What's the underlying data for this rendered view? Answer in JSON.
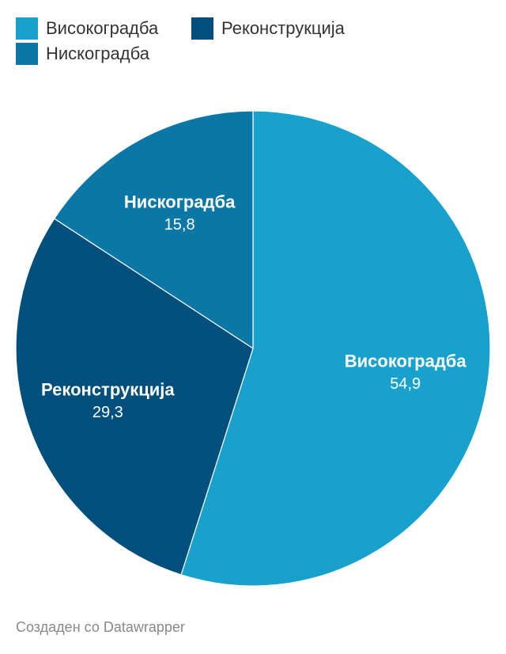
{
  "chart_data": {
    "type": "pie",
    "categories": [
      "Високоградба",
      "Реконструкција",
      "Нискоградба"
    ],
    "values": [
      54.9,
      29.3,
      15.8
    ],
    "value_labels": [
      "54,9",
      "29,3",
      "15,8"
    ],
    "colors": [
      "#18a1cd",
      "#004f7c",
      "#0b77a7"
    ],
    "credit": "Создаден со Datawrapper"
  }
}
